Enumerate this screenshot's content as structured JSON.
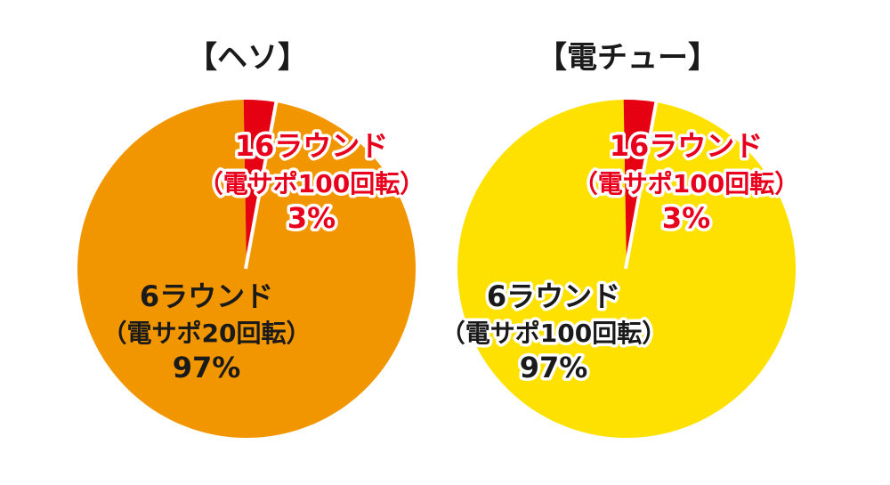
{
  "chart_data": [
    {
      "type": "pie",
      "title": "【ヘソ】",
      "slice_colors": [
        "#f29600",
        "#e50012"
      ],
      "slices": [
        {
          "label": [
            "6ラウンド",
            "（電サポ20回転）",
            "97%"
          ],
          "value": 97
        },
        {
          "label": [
            "16ラウンド",
            "（電サポ100回転）",
            "3%"
          ],
          "value": 3
        }
      ]
    },
    {
      "type": "pie",
      "title": "【電チュー】",
      "slice_colors": [
        "#ffe100",
        "#e50012"
      ],
      "slices": [
        {
          "label": [
            "6ラウンド",
            "（電サポ100回転）",
            "97%"
          ],
          "value": 97
        },
        {
          "label": [
            "16ラウンド",
            "（電サポ100回転）",
            "3%"
          ],
          "value": 3
        }
      ]
    }
  ]
}
